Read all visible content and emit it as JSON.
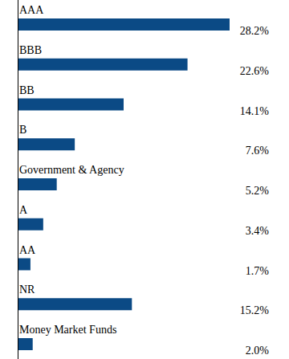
{
  "chart_data": {
    "type": "bar",
    "orientation": "horizontal",
    "categories": [
      "AAA",
      "BBB",
      "BB",
      "B",
      "Government & Agency",
      "A",
      "AA",
      "NR",
      "Money Market Funds"
    ],
    "values": [
      28.2,
      22.6,
      14.1,
      7.6,
      5.2,
      3.4,
      1.7,
      15.2,
      2.0
    ],
    "value_labels": [
      "28.2%",
      "22.6%",
      "14.1%",
      "7.6%",
      "5.2%",
      "3.4%",
      "1.7%",
      "15.2%",
      "2.0%"
    ],
    "xlim": [
      0,
      28.2
    ],
    "data_labels": true,
    "color": "#0b4a85"
  }
}
